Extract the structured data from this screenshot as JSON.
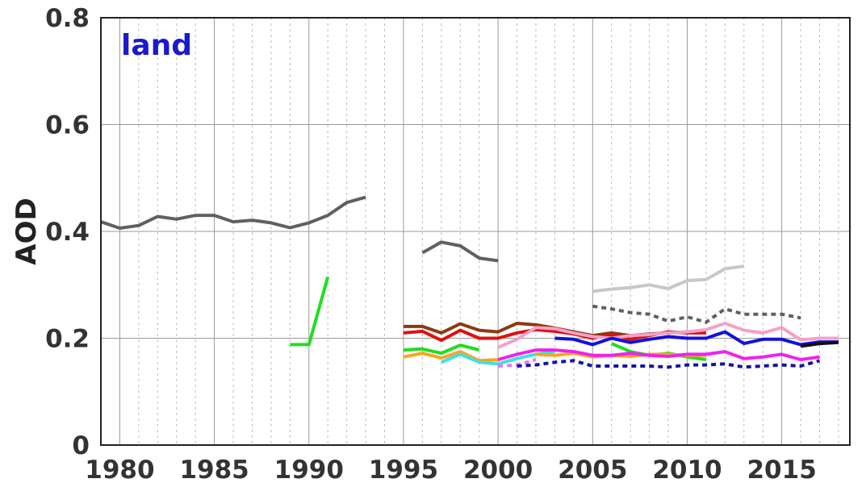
{
  "chart_data": {
    "type": "line",
    "title": "",
    "panel_label": "land",
    "panel_label_color": "#1a1acc",
    "xlabel": "",
    "ylabel": "AOD",
    "xlim": [
      1977.9,
      1979.0
    ],
    "ylim": [
      0,
      0.8
    ],
    "x_ticks": [
      1980,
      1985,
      1990,
      1995,
      2000,
      2005,
      2010,
      2015
    ],
    "x_tick_labels": [
      "1980",
      "1985",
      "1990",
      "1995",
      "2000",
      "2005",
      "2010",
      "2015"
    ],
    "y_ticks": [
      0,
      0.2,
      0.4,
      0.6,
      0.8
    ],
    "y_tick_labels": [
      "0",
      "0.2",
      "0.4",
      "0.6",
      "0.8"
    ],
    "grid": true,
    "minor_grid_x": "yearly dotted",
    "series": [
      {
        "color": "#606060",
        "style": "solid",
        "x": [
          1979,
          1980,
          1981,
          1982,
          1983,
          1984,
          1985,
          1986,
          1987,
          1988,
          1989,
          1990,
          1991,
          1992,
          1993
        ],
        "y": [
          0.418,
          0.406,
          0.411,
          0.428,
          0.423,
          0.43,
          0.43,
          0.418,
          0.421,
          0.416,
          0.407,
          0.416,
          0.43,
          0.454,
          0.464
        ]
      },
      {
        "color": "#22dd22",
        "style": "solid",
        "x": [
          1989,
          1990,
          1991
        ],
        "y": [
          0.188,
          0.188,
          0.315
        ]
      },
      {
        "color": "#606060",
        "style": "solid",
        "x": [
          1996,
          1997,
          1998,
          1999,
          2000
        ],
        "y": [
          0.36,
          0.38,
          0.373,
          0.35,
          0.345
        ]
      },
      {
        "color": "#8b3a10",
        "style": "solid",
        "x": [
          1995,
          1996,
          1997,
          1998,
          1999,
          2000,
          2001,
          2002,
          2003,
          2004,
          2005,
          2006,
          2007,
          2008,
          2009,
          2010,
          2011
        ],
        "y": [
          0.222,
          0.222,
          0.21,
          0.227,
          0.215,
          0.212,
          0.228,
          0.225,
          0.219,
          0.212,
          0.205,
          0.21,
          0.205,
          0.208,
          0.21,
          0.212,
          0.215
        ]
      },
      {
        "color": "#dd1111",
        "style": "solid",
        "x": [
          1995,
          1996,
          1997,
          1998,
          1999,
          2000,
          2001,
          2002,
          2003,
          2004,
          2005,
          2006,
          2007,
          2008,
          2009,
          2010,
          2011
        ],
        "y": [
          0.21,
          0.213,
          0.196,
          0.215,
          0.2,
          0.2,
          0.21,
          0.216,
          0.213,
          0.208,
          0.2,
          0.207,
          0.198,
          0.205,
          0.212,
          0.21,
          0.21
        ]
      },
      {
        "color": "#22dd22",
        "style": "solid",
        "x": [
          1995,
          1996,
          1997,
          1998,
          1999
        ],
        "y": [
          0.178,
          0.18,
          0.172,
          0.187,
          0.178
        ]
      },
      {
        "color": "#f5a623",
        "style": "solid",
        "x": [
          1995,
          1996,
          1997,
          1998,
          1999,
          2000
        ],
        "y": [
          0.165,
          0.172,
          0.163,
          0.175,
          0.158,
          0.16
        ]
      },
      {
        "color": "#40e0e0",
        "style": "solid",
        "x": [
          1997,
          1998,
          1999,
          2000,
          2001,
          2002,
          2003
        ],
        "y": [
          0.155,
          0.17,
          0.155,
          0.152,
          0.162,
          0.17,
          0.175
        ]
      },
      {
        "color": "#f5a0c8",
        "style": "solid",
        "x": [
          2000,
          2001,
          2002,
          2003,
          2004,
          2005,
          2006,
          2007,
          2008,
          2009,
          2010,
          2011,
          2012,
          2013,
          2014,
          2015,
          2016,
          2017,
          2018
        ],
        "y": [
          0.183,
          0.198,
          0.22,
          0.218,
          0.21,
          0.203,
          0.2,
          0.205,
          0.207,
          0.21,
          0.212,
          0.216,
          0.228,
          0.215,
          0.21,
          0.22,
          0.197,
          0.2,
          0.2
        ]
      },
      {
        "color": "#22dd22",
        "style": "solid",
        "x": [
          2006,
          2007,
          2008,
          2009,
          2010,
          2011
        ],
        "y": [
          0.19,
          0.175,
          0.168,
          0.172,
          0.165,
          0.16
        ]
      },
      {
        "color": "#f5a623",
        "style": "solid",
        "x": [
          2002,
          2003,
          2004,
          2005,
          2006,
          2007,
          2008,
          2009,
          2010,
          2011
        ],
        "y": [
          0.17,
          0.168,
          0.172,
          0.165,
          0.168,
          0.166,
          0.17,
          0.17,
          0.168,
          0.168
        ]
      },
      {
        "color": "#ee22ee",
        "style": "solid",
        "x": [
          2000,
          2001,
          2002,
          2003,
          2004,
          2005,
          2006,
          2007,
          2008,
          2009,
          2010,
          2011,
          2012,
          2013,
          2014,
          2015,
          2016,
          2017
        ],
        "y": [
          0.16,
          0.17,
          0.178,
          0.178,
          0.175,
          0.168,
          0.168,
          0.172,
          0.168,
          0.166,
          0.17,
          0.17,
          0.175,
          0.162,
          0.165,
          0.17,
          0.16,
          0.165
        ]
      },
      {
        "color": "#ee77ee",
        "style": "dotted",
        "x": [
          2000,
          2001,
          2002
        ],
        "y": [
          0.148,
          0.15,
          0.16
        ]
      },
      {
        "color": "#1414a0",
        "style": "dotted",
        "x": [
          2001,
          2002,
          2003,
          2004,
          2005,
          2006,
          2007,
          2008,
          2009,
          2010,
          2011,
          2012,
          2013,
          2014,
          2015,
          2016,
          2017
        ],
        "y": [
          0.148,
          0.15,
          0.155,
          0.158,
          0.148,
          0.148,
          0.148,
          0.148,
          0.146,
          0.15,
          0.15,
          0.152,
          0.146,
          0.148,
          0.15,
          0.148,
          0.158
        ]
      },
      {
        "color": "#c8c8c8",
        "style": "solid",
        "x": [
          2005,
          2006,
          2007,
          2008,
          2009,
          2010,
          2011,
          2012,
          2013
        ],
        "y": [
          0.288,
          0.292,
          0.295,
          0.3,
          0.293,
          0.308,
          0.31,
          0.33,
          0.335
        ]
      },
      {
        "color": "#606060",
        "style": "dotted",
        "x": [
          2005,
          2006,
          2007,
          2008,
          2009,
          2010,
          2011,
          2012,
          2013,
          2014,
          2015,
          2016
        ],
        "y": [
          0.26,
          0.255,
          0.248,
          0.245,
          0.232,
          0.24,
          0.23,
          0.255,
          0.245,
          0.245,
          0.245,
          0.238
        ]
      },
      {
        "color": "#1111dd",
        "style": "solid",
        "x": [
          2003,
          2004,
          2005,
          2006,
          2007,
          2008,
          2009,
          2010,
          2011,
          2012,
          2013,
          2014,
          2015,
          2016,
          2017,
          2018
        ],
        "y": [
          0.2,
          0.198,
          0.188,
          0.2,
          0.192,
          0.198,
          0.203,
          0.2,
          0.2,
          0.212,
          0.19,
          0.198,
          0.198,
          0.188,
          0.193,
          0.193
        ]
      },
      {
        "color": "#111111",
        "style": "solid",
        "x": [
          2016,
          2017,
          2018
        ],
        "y": [
          0.185,
          0.19,
          0.192
        ]
      }
    ]
  }
}
